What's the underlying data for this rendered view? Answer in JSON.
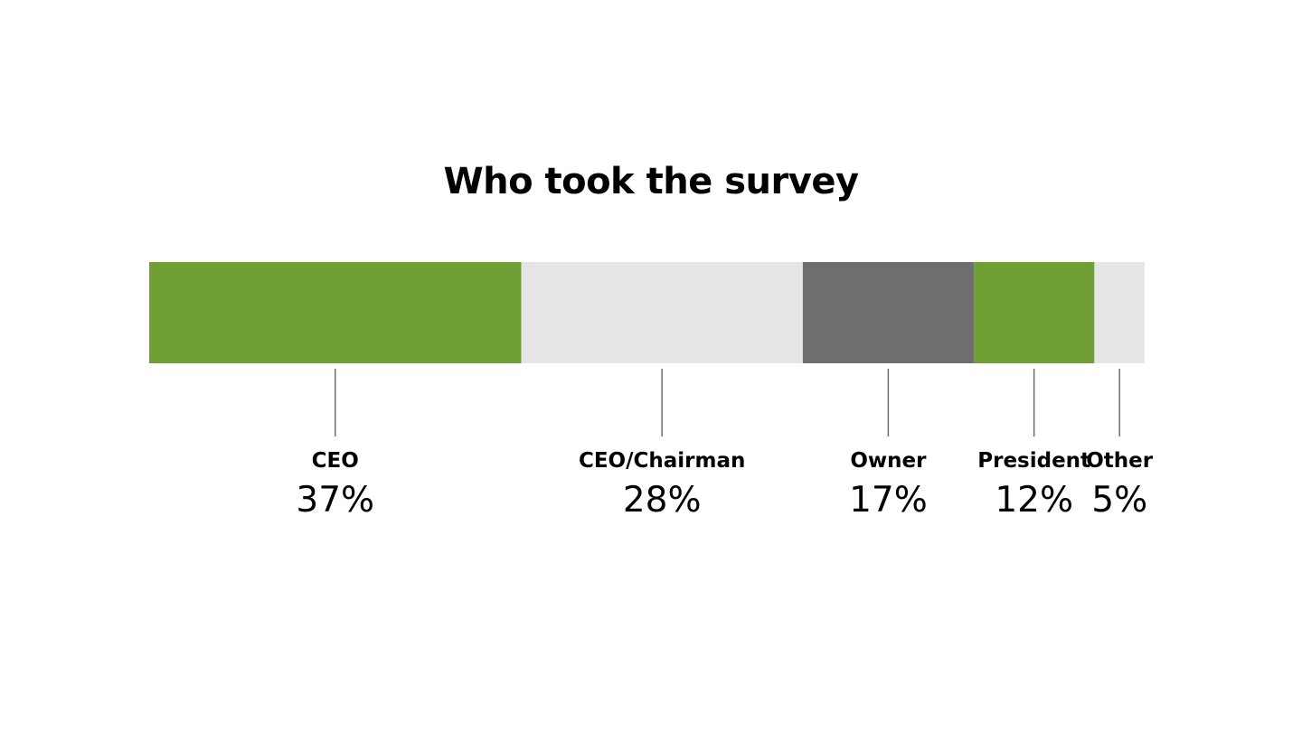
{
  "chart_data": {
    "type": "bar",
    "orientation": "horizontal-stacked",
    "title": "Who took the survey",
    "categories": [
      "CEO",
      "CEO/Chairman",
      "Owner",
      "President",
      "Other"
    ],
    "values": [
      37,
      28,
      17,
      12,
      5
    ],
    "value_labels": [
      "37%",
      "28%",
      "17%",
      "12%",
      "5%"
    ],
    "colors": [
      "#70a035",
      "#e5e5e5",
      "#6d6e6d",
      "#70a035",
      "#e5e5e5"
    ],
    "leader_line_color": "#6d6e6d",
    "xlim": [
      0,
      99
    ],
    "grid": false,
    "legend": "none"
  }
}
